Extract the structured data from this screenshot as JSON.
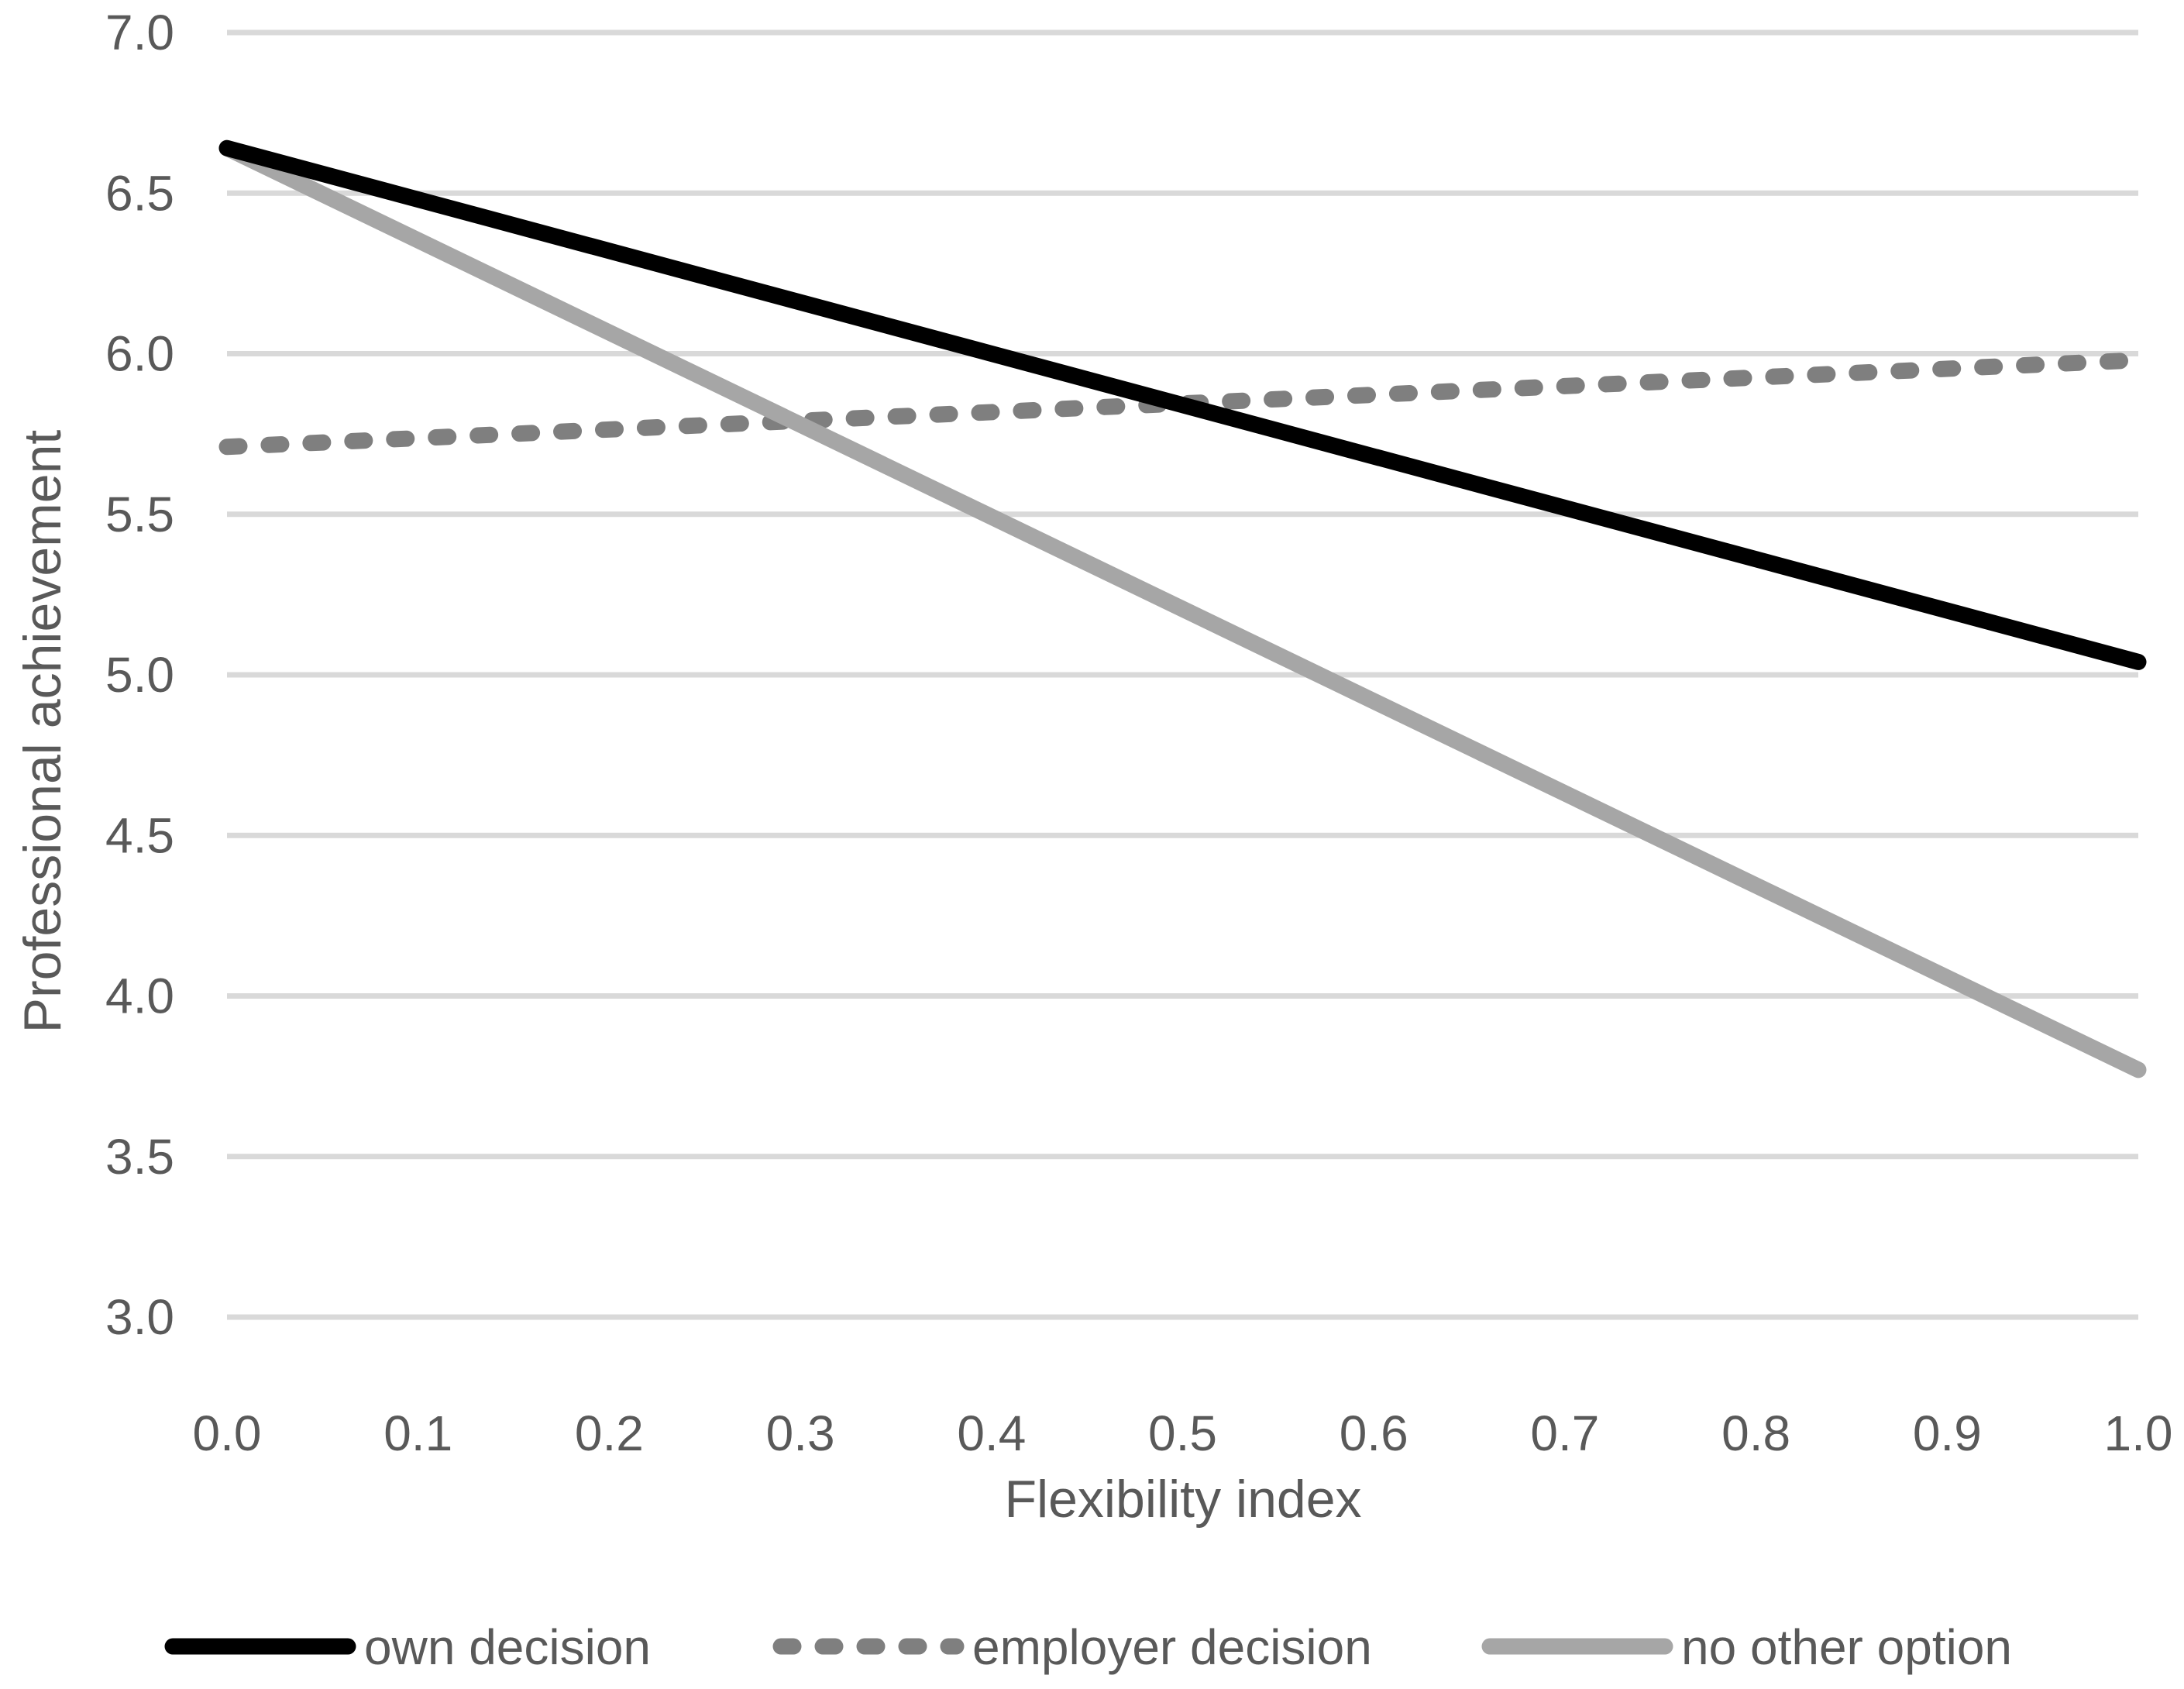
{
  "figure": {
    "background": "#ffffff",
    "text_color": "#595959",
    "gridline_color": "#d9d9d9"
  },
  "chart_data": {
    "type": "line",
    "title": "",
    "xlabel": "Flexibility index",
    "ylabel": "Professional achievement",
    "xlim": [
      0.0,
      1.0
    ],
    "ylim": [
      3.0,
      7.0
    ],
    "grid": true,
    "legend_position": "bottom",
    "x_ticks": [
      "0.0",
      "0.1",
      "0.2",
      "0.3",
      "0.4",
      "0.5",
      "0.6",
      "0.7",
      "0.8",
      "0.9",
      "1.0"
    ],
    "y_ticks": [
      "3.0",
      "3.5",
      "4.0",
      "4.5",
      "5.0",
      "5.5",
      "6.0",
      "6.5",
      "7.0"
    ],
    "x": [
      0.0,
      1.0
    ],
    "series": [
      {
        "name": "own decision",
        "values": [
          6.64,
          5.04
        ],
        "color": "#000000",
        "line_style": "solid"
      },
      {
        "name": "employer decision",
        "values": [
          5.71,
          5.98
        ],
        "color": "#7f7f7f",
        "line_style": "dashed"
      },
      {
        "name": "no other option",
        "values": [
          6.64,
          3.77
        ],
        "color": "#a6a6a6",
        "line_style": "solid"
      }
    ]
  },
  "legend": {
    "items": [
      {
        "label": "own decision",
        "color": "#000000",
        "style": "solid"
      },
      {
        "label": "employer decision",
        "color": "#7f7f7f",
        "style": "dashed"
      },
      {
        "label": "no other option",
        "color": "#a6a6a6",
        "style": "solid"
      }
    ]
  }
}
